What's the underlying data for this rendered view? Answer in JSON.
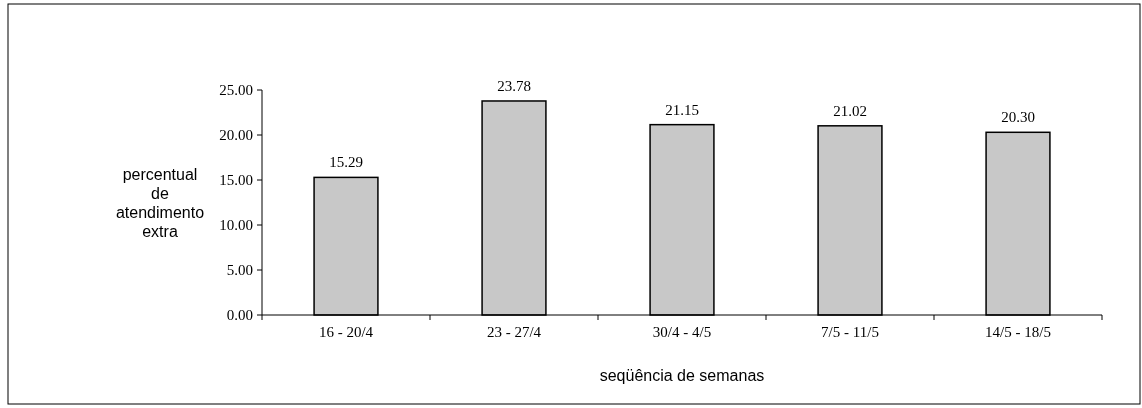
{
  "chart_data": {
    "type": "bar",
    "xlabel": "seqüência de semanas",
    "ylabel": "percentual de atendimento extra",
    "categories": [
      "16 - 20/4",
      "23 - 27/4",
      "30/4 - 4/5",
      "7/5 - 11/5",
      "14/5 - 18/5"
    ],
    "values": [
      15.29,
      23.78,
      21.15,
      21.02,
      20.3
    ],
    "color": "#c8c8c8",
    "value_labels": [
      "15.29",
      "23.78",
      "21.15",
      "21.02",
      "20.30"
    ],
    "ylim": [
      0,
      25
    ],
    "yticks": [
      {
        "value": 0,
        "label": "0.00"
      },
      {
        "value": 5,
        "label": "5.00"
      },
      {
        "value": 10,
        "label": "10.00"
      },
      {
        "value": 15,
        "label": "15.00"
      },
      {
        "value": 20,
        "label": "20.00"
      },
      {
        "value": 25,
        "label": "25.00"
      }
    ],
    "grid": false
  }
}
